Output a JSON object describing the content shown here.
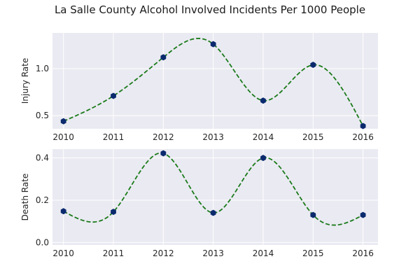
{
  "title": "La Salle County Alcohol Involved Incidents Per 1000 People",
  "colors": {
    "axes_bg": "#eaeaf2",
    "grid": "#ffffff",
    "marker": "#0b2a6e",
    "curve": "#1a7a1a"
  },
  "chart_data": [
    {
      "type": "line",
      "ylabel": "Injury Rate",
      "x": [
        2010,
        2011,
        2012,
        2013,
        2014,
        2015,
        2016
      ],
      "xticks": [
        "2010",
        "2011",
        "2012",
        "2013",
        "2014",
        "2015",
        "2016"
      ],
      "values": [
        0.44,
        0.71,
        1.12,
        1.26,
        0.66,
        1.04,
        0.39
      ],
      "yticks": [
        0.5,
        1.0
      ],
      "ytick_labels": [
        "0.5",
        "1.0"
      ],
      "xlim": [
        2009.78,
        2016.3
      ],
      "ylim": [
        0.36,
        1.38
      ],
      "grid": true,
      "style": "dashed spline with hexagon markers"
    },
    {
      "type": "line",
      "ylabel": "Death Rate",
      "x": [
        2010,
        2011,
        2012,
        2013,
        2014,
        2015,
        2016
      ],
      "xticks": [
        "2010",
        "2011",
        "2012",
        "2013",
        "2014",
        "2015",
        "2016"
      ],
      "values": [
        0.148,
        0.145,
        0.422,
        0.14,
        0.4,
        0.13,
        0.13
      ],
      "yticks": [
        0.0,
        0.2,
        0.4
      ],
      "ytick_labels": [
        "0.0",
        "0.2",
        "0.4"
      ],
      "xlim": [
        2009.78,
        2016.3
      ],
      "ylim": [
        -0.012,
        0.442
      ],
      "grid": true,
      "style": "dashed spline with hexagon markers"
    }
  ]
}
